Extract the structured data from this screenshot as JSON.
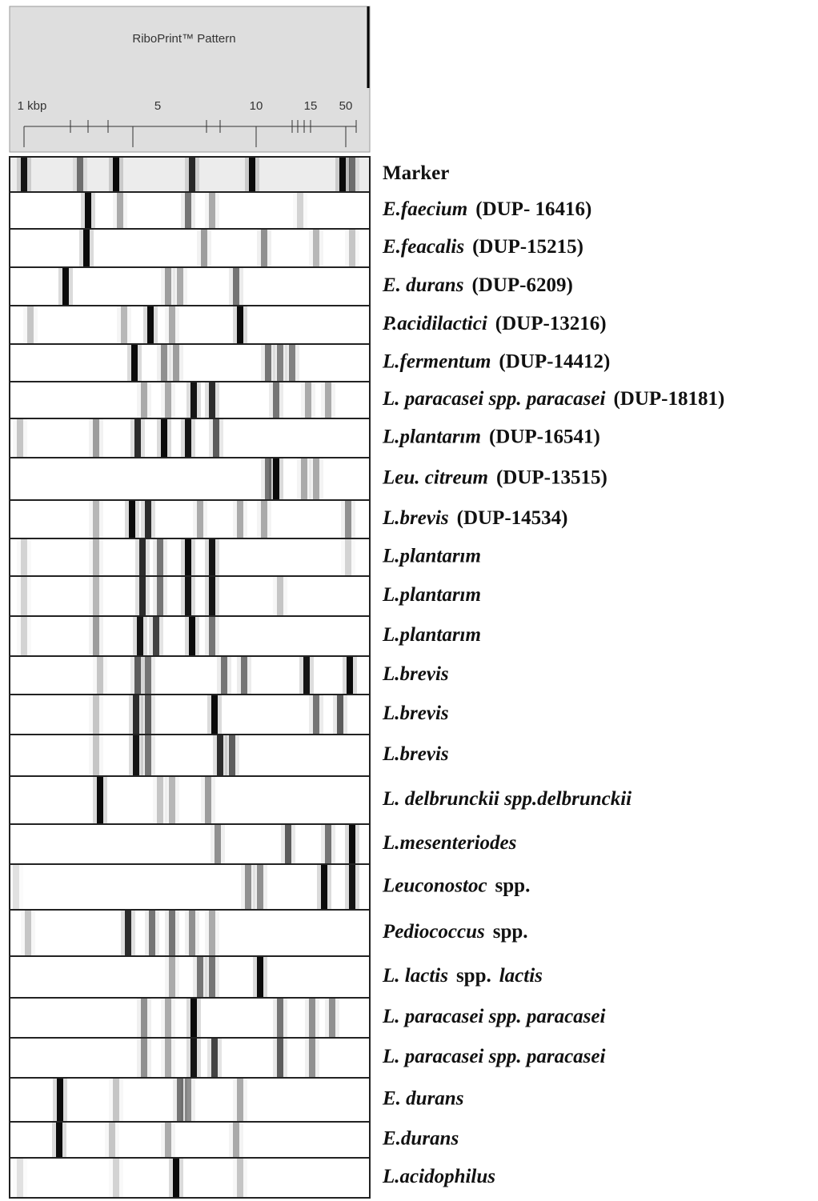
{
  "header": {
    "title": "RiboPrint™ Pattern",
    "scale_labels": [
      "1 kbp",
      "5",
      "10",
      "15",
      "50"
    ]
  },
  "lanes": [
    {
      "parts": [
        {
          "text": "Marker",
          "italic": false
        }
      ]
    },
    {
      "parts": [
        {
          "text": "E.faecium",
          "italic": true
        },
        {
          "text": "(DUP- 16416)",
          "italic": false
        }
      ]
    },
    {
      "parts": [
        {
          "text": "E.feacalis",
          "italic": true
        },
        {
          "text": "(DUP-15215)",
          "italic": false
        }
      ]
    },
    {
      "parts": [
        {
          "text": "E. durans",
          "italic": true
        },
        {
          "text": "(DUP-6209)",
          "italic": false
        }
      ]
    },
    {
      "parts": [
        {
          "text": "P.acidilactici",
          "italic": true
        },
        {
          "text": "(DUP-13216)",
          "italic": false
        }
      ]
    },
    {
      "parts": [
        {
          "text": "L.fermentum",
          "italic": true
        },
        {
          "text": "(DUP-14412)",
          "italic": false
        }
      ]
    },
    {
      "parts": [
        {
          "text": "L. paracasei spp. paracasei",
          "italic": true
        },
        {
          "text": "(DUP-18181)",
          "italic": false
        }
      ]
    },
    {
      "parts": [
        {
          "text": "L.plantarım",
          "italic": true
        },
        {
          "text": "(DUP-16541)",
          "italic": false
        }
      ]
    },
    {
      "parts": [
        {
          "text": "Leu. citreum",
          "italic": true
        },
        {
          "text": "(DUP-13515)",
          "italic": false
        }
      ]
    },
    {
      "parts": [
        {
          "text": "L.brevis",
          "italic": true
        },
        {
          "text": "(DUP-14534)",
          "italic": false
        }
      ]
    },
    {
      "parts": [
        {
          "text": "L.plantarım",
          "italic": true
        }
      ]
    },
    {
      "parts": [
        {
          "text": "L.plantarım",
          "italic": true
        }
      ]
    },
    {
      "parts": [
        {
          "text": "L.plantarım",
          "italic": true
        }
      ]
    },
    {
      "parts": [
        {
          "text": "L.brevis",
          "italic": true
        }
      ]
    },
    {
      "parts": [
        {
          "text": "L.brevis",
          "italic": true
        }
      ]
    },
    {
      "parts": [
        {
          "text": "L.brevis",
          "italic": true
        }
      ]
    },
    {
      "parts": [
        {
          "text": "L. delbrunckii spp.delbrunckii",
          "italic": true
        }
      ]
    },
    {
      "parts": [
        {
          "text": "L.mesenteriodes",
          "italic": true
        }
      ]
    },
    {
      "parts": [
        {
          "text": "Leuconostoc",
          "italic": true
        },
        {
          "text": "spp.",
          "italic": false
        }
      ]
    },
    {
      "parts": [
        {
          "text": "Pediococcus",
          "italic": true
        },
        {
          "text": "spp.",
          "italic": false
        }
      ]
    },
    {
      "parts": [
        {
          "text": "L. lactis",
          "italic": true
        },
        {
          "text": "spp.",
          "italic": false
        },
        {
          "text": "lactis",
          "italic": true
        }
      ]
    },
    {
      "parts": [
        {
          "text": "L. paracasei spp. paracasei",
          "italic": true
        }
      ]
    },
    {
      "parts": [
        {
          "text": "L. paracasei spp. paracasei",
          "italic": true
        }
      ]
    },
    {
      "parts": [
        {
          "text": "E. durans",
          "italic": true
        }
      ]
    },
    {
      "parts": [
        {
          "text": "E.durans",
          "italic": true
        }
      ]
    },
    {
      "parts": [
        {
          "text": "L.acidophilus",
          "italic": true
        }
      ]
    }
  ]
}
